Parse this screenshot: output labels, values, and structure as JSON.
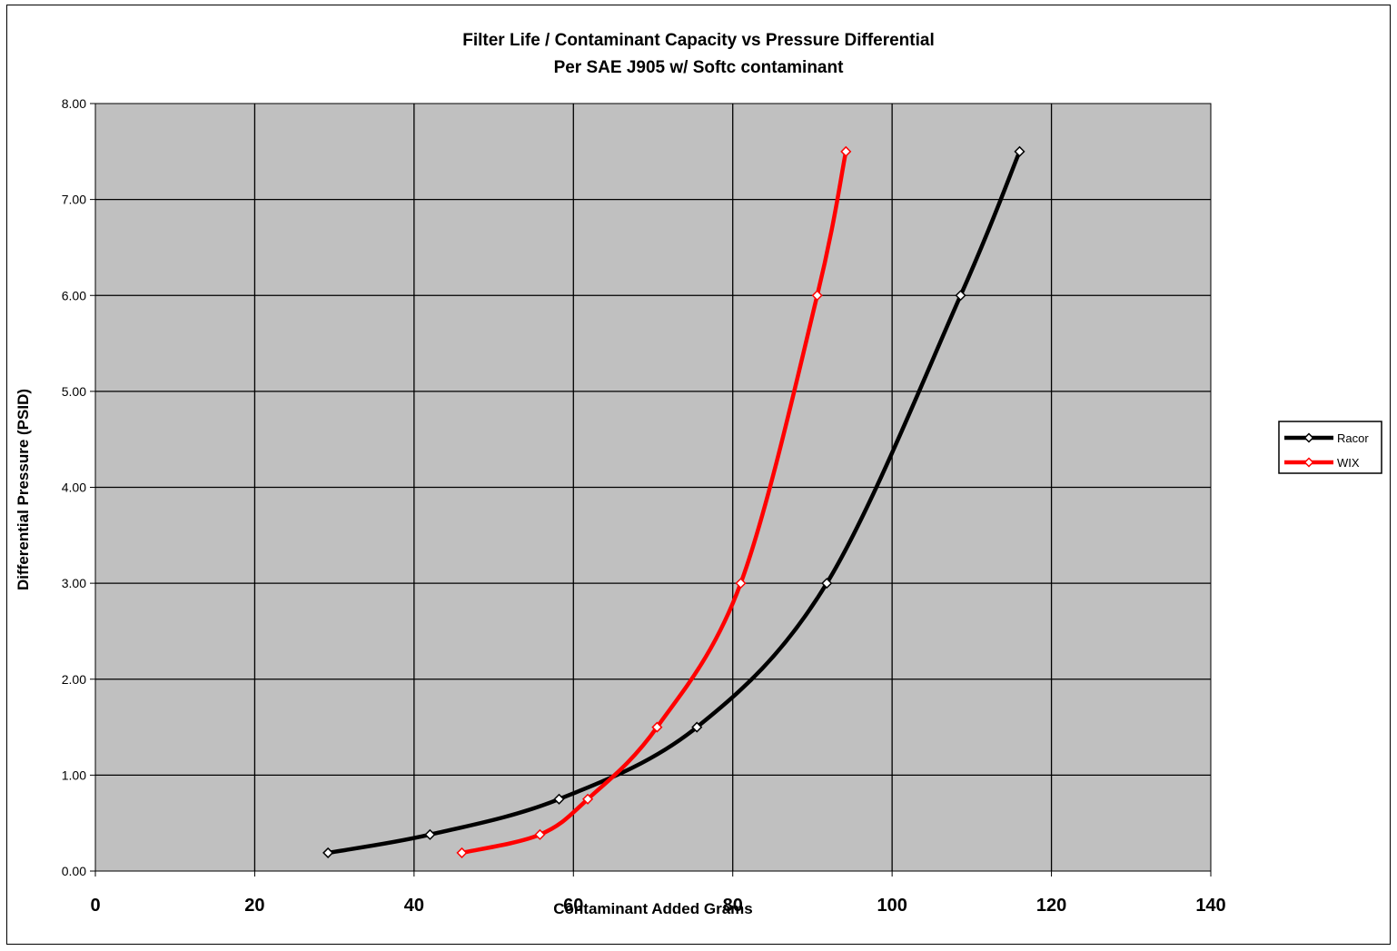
{
  "chart_data": {
    "type": "line",
    "title": "Filter Life / Contaminant Capacity  vs  Pressure Differential",
    "subtitle": "Per SAE J905 w/ Softc contaminant",
    "xlabel": "Contaminant Added Grams",
    "ylabel": "Differential Pressure (PSID)",
    "xlim": [
      0,
      140
    ],
    "ylim": [
      0,
      8
    ],
    "x_ticks": [
      "0",
      "20",
      "40",
      "60",
      "80",
      "100",
      "120",
      "140"
    ],
    "y_ticks": [
      "0.00",
      "1.00",
      "2.00",
      "3.00",
      "4.00",
      "5.00",
      "6.00",
      "7.00",
      "8.00"
    ],
    "grid": true,
    "legend_position": "right",
    "plot_background": "#c0c0c0",
    "series": [
      {
        "name": "Racor",
        "color": "#000000",
        "marker": "diamond",
        "smooth": true,
        "points": [
          [
            29.2,
            0.19
          ],
          [
            42.0,
            0.38
          ],
          [
            58.2,
            0.75
          ],
          [
            75.5,
            1.5
          ],
          [
            91.8,
            3.0
          ],
          [
            108.6,
            6.0
          ],
          [
            116.0,
            7.5
          ]
        ]
      },
      {
        "name": "WIX",
        "color": "#ff0000",
        "marker": "diamond",
        "smooth": true,
        "points": [
          [
            46.0,
            0.19
          ],
          [
            55.8,
            0.38
          ],
          [
            61.8,
            0.75
          ],
          [
            70.5,
            1.5
          ],
          [
            81.0,
            3.0
          ],
          [
            90.6,
            6.0
          ],
          [
            94.2,
            7.5
          ]
        ]
      }
    ]
  }
}
